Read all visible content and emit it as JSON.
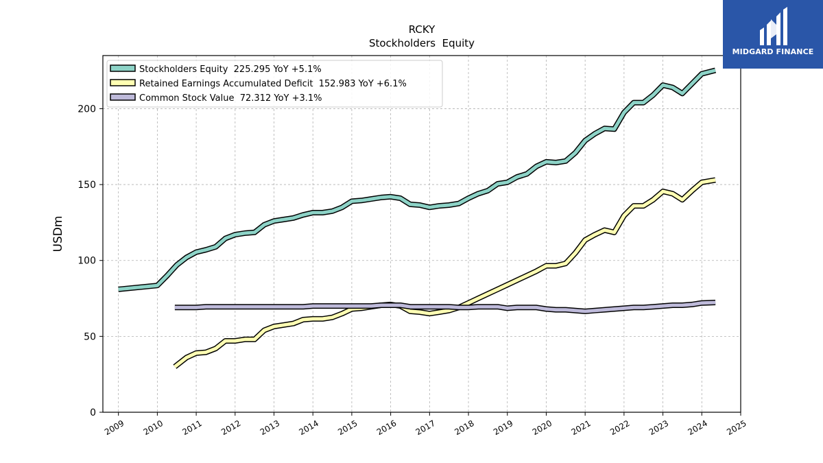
{
  "brand": {
    "name": "MIDGARD FINANCE",
    "logo_color": "#2a56a8"
  },
  "chart_data": {
    "type": "line",
    "title": "RCKY",
    "subtitle": "Stockholders  Equity",
    "ylabel": "USDm",
    "xlabel": "",
    "xlim": [
      2008.6,
      2025.0
    ],
    "ylim": [
      0,
      235
    ],
    "x_ticks": [
      "2009",
      "2010",
      "2011",
      "2012",
      "2013",
      "2014",
      "2015",
      "2016",
      "2017",
      "2018",
      "2019",
      "2020",
      "2021",
      "2022",
      "2023",
      "2024",
      "2025"
    ],
    "y_ticks": [
      "0",
      "50",
      "100",
      "150",
      "200"
    ],
    "y_tick_values": [
      0,
      50,
      100,
      150,
      200
    ],
    "grid": true,
    "legend_position": "top-left",
    "series": [
      {
        "name": "Stockholders Equity  225.295 YoY +5.1%",
        "color": "#8dd3c7",
        "points": [
          [
            2009.0,
            81
          ],
          [
            2010.0,
            83.5
          ],
          [
            2010.25,
            90
          ],
          [
            2010.5,
            97
          ],
          [
            2010.75,
            102
          ],
          [
            2011.0,
            105.5
          ],
          [
            2011.25,
            107
          ],
          [
            2011.5,
            109
          ],
          [
            2011.75,
            114.5
          ],
          [
            2012.0,
            117
          ],
          [
            2012.25,
            118
          ],
          [
            2012.5,
            118.5
          ],
          [
            2012.75,
            123.5
          ],
          [
            2013.0,
            126
          ],
          [
            2013.25,
            127
          ],
          [
            2013.5,
            128
          ],
          [
            2013.75,
            130
          ],
          [
            2014.0,
            131.5
          ],
          [
            2014.25,
            131.5
          ],
          [
            2014.5,
            132.5
          ],
          [
            2014.75,
            135
          ],
          [
            2015.0,
            139
          ],
          [
            2015.25,
            139.5
          ],
          [
            2015.5,
            140.5
          ],
          [
            2015.75,
            141.5
          ],
          [
            2016.0,
            142
          ],
          [
            2016.25,
            141
          ],
          [
            2016.5,
            137
          ],
          [
            2016.75,
            136.5
          ],
          [
            2017.0,
            135
          ],
          [
            2017.25,
            136
          ],
          [
            2017.5,
            136.5
          ],
          [
            2017.75,
            137.5
          ],
          [
            2018.0,
            141
          ],
          [
            2018.25,
            144
          ],
          [
            2018.5,
            146
          ],
          [
            2018.75,
            150.5
          ],
          [
            2019.0,
            151.5
          ],
          [
            2019.25,
            155
          ],
          [
            2019.5,
            157
          ],
          [
            2019.75,
            162
          ],
          [
            2020.0,
            165
          ],
          [
            2020.25,
            164.5
          ],
          [
            2020.5,
            165.5
          ],
          [
            2020.75,
            171
          ],
          [
            2021.0,
            179
          ],
          [
            2021.25,
            183.5
          ],
          [
            2021.5,
            187
          ],
          [
            2021.75,
            186.5
          ],
          [
            2022.0,
            197.5
          ],
          [
            2022.25,
            204
          ],
          [
            2022.5,
            204
          ],
          [
            2022.75,
            209
          ],
          [
            2023.0,
            215.5
          ],
          [
            2023.25,
            214
          ],
          [
            2023.5,
            210
          ],
          [
            2023.75,
            216.5
          ],
          [
            2024.0,
            223
          ],
          [
            2024.35,
            225.3
          ]
        ]
      },
      {
        "name": "Retained Earnings Accumulated Deficit  152.983 YoY +6.1%",
        "color": "#ffffb3",
        "points": [
          [
            2010.45,
            30
          ],
          [
            2010.75,
            36
          ],
          [
            2011.0,
            39
          ],
          [
            2011.25,
            39.5
          ],
          [
            2011.5,
            42
          ],
          [
            2011.75,
            47
          ],
          [
            2012.0,
            47
          ],
          [
            2012.25,
            48
          ],
          [
            2012.5,
            48
          ],
          [
            2012.75,
            54
          ],
          [
            2013.0,
            56.5
          ],
          [
            2013.25,
            57.5
          ],
          [
            2013.5,
            58.5
          ],
          [
            2013.75,
            61
          ],
          [
            2014.0,
            61.5
          ],
          [
            2014.25,
            61.5
          ],
          [
            2014.5,
            62.5
          ],
          [
            2014.75,
            65
          ],
          [
            2015.0,
            68
          ],
          [
            2015.25,
            68.5
          ],
          [
            2015.5,
            69.5
          ],
          [
            2015.75,
            70.5
          ],
          [
            2016.0,
            71
          ],
          [
            2016.25,
            70
          ],
          [
            2016.5,
            66.5
          ],
          [
            2016.75,
            66
          ],
          [
            2017.0,
            65
          ],
          [
            2017.25,
            66
          ],
          [
            2017.5,
            67
          ],
          [
            2017.75,
            69
          ],
          [
            2018.0,
            72
          ],
          [
            2018.25,
            75
          ],
          [
            2018.5,
            78
          ],
          [
            2018.75,
            81
          ],
          [
            2019.0,
            84
          ],
          [
            2019.25,
            87
          ],
          [
            2019.5,
            90
          ],
          [
            2019.75,
            93
          ],
          [
            2020.0,
            96.5
          ],
          [
            2020.25,
            96.5
          ],
          [
            2020.5,
            98
          ],
          [
            2020.75,
            105
          ],
          [
            2021.0,
            113.5
          ],
          [
            2021.25,
            117
          ],
          [
            2021.5,
            120
          ],
          [
            2021.75,
            118.5
          ],
          [
            2022.0,
            129.5
          ],
          [
            2022.25,
            136
          ],
          [
            2022.5,
            136
          ],
          [
            2022.75,
            140
          ],
          [
            2023.0,
            145.5
          ],
          [
            2023.25,
            144
          ],
          [
            2023.5,
            140
          ],
          [
            2023.75,
            146
          ],
          [
            2024.0,
            151.5
          ],
          [
            2024.35,
            153
          ]
        ]
      },
      {
        "name": "Common Stock Value  72.312 YoY +3.1%",
        "color": "#bebada",
        "points": [
          [
            2010.45,
            69
          ],
          [
            2010.75,
            69
          ],
          [
            2011.0,
            69
          ],
          [
            2011.25,
            69.5
          ],
          [
            2011.5,
            69.5
          ],
          [
            2011.75,
            69.5
          ],
          [
            2012.0,
            69.5
          ],
          [
            2012.25,
            69.5
          ],
          [
            2012.5,
            69.5
          ],
          [
            2012.75,
            69.5
          ],
          [
            2013.0,
            69.5
          ],
          [
            2013.25,
            69.5
          ],
          [
            2013.5,
            69.5
          ],
          [
            2013.75,
            69.5
          ],
          [
            2014.0,
            70
          ],
          [
            2014.25,
            70
          ],
          [
            2014.5,
            70
          ],
          [
            2014.75,
            70
          ],
          [
            2015.0,
            70
          ],
          [
            2015.25,
            70
          ],
          [
            2015.5,
            70
          ],
          [
            2015.75,
            70.5
          ],
          [
            2016.0,
            70.5
          ],
          [
            2016.25,
            70.5
          ],
          [
            2016.5,
            69.5
          ],
          [
            2016.75,
            69.5
          ],
          [
            2017.0,
            69.5
          ],
          [
            2017.25,
            69.5
          ],
          [
            2017.5,
            69.5
          ],
          [
            2017.75,
            69
          ],
          [
            2018.0,
            69
          ],
          [
            2018.25,
            69.5
          ],
          [
            2018.5,
            69.5
          ],
          [
            2018.75,
            69.5
          ],
          [
            2019.0,
            68.5
          ],
          [
            2019.25,
            69
          ],
          [
            2019.5,
            69
          ],
          [
            2019.75,
            69
          ],
          [
            2020.0,
            68
          ],
          [
            2020.25,
            67.5
          ],
          [
            2020.5,
            67.5
          ],
          [
            2020.75,
            67
          ],
          [
            2021.0,
            66.5
          ],
          [
            2021.25,
            67
          ],
          [
            2021.5,
            67.5
          ],
          [
            2021.75,
            68
          ],
          [
            2022.0,
            68.5
          ],
          [
            2022.25,
            69
          ],
          [
            2022.5,
            69
          ],
          [
            2022.75,
            69.5
          ],
          [
            2023.0,
            70
          ],
          [
            2023.25,
            70.5
          ],
          [
            2023.5,
            70.5
          ],
          [
            2023.75,
            71
          ],
          [
            2024.0,
            72
          ],
          [
            2024.35,
            72.3
          ]
        ]
      }
    ]
  }
}
